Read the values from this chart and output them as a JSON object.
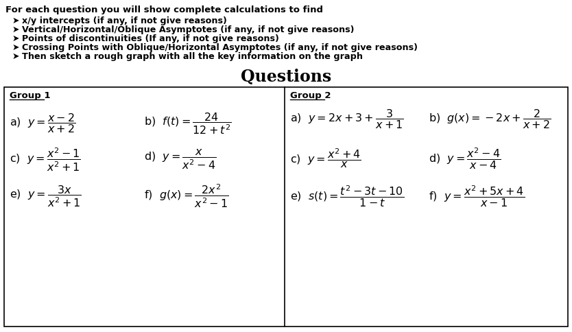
{
  "background_color": "#ffffff",
  "header_bold": "For each question you will show complete calculations to find",
  "bullets": [
    "x/y intercepts (if any, if not give reasons)",
    "Vertical/Horizontal/Oblique Asymptotes (if any, if not give reasons)",
    "Points of discontinuities (If any, if not give reasons)",
    "Crossing Points with Oblique/Horizontal Asymptotes (if any, if not give reasons)",
    "Then sketch a rough graph with all the key information on the graph"
  ],
  "section_title": "Questions",
  "group1_label": "Group 1",
  "group2_label": "Group 2"
}
